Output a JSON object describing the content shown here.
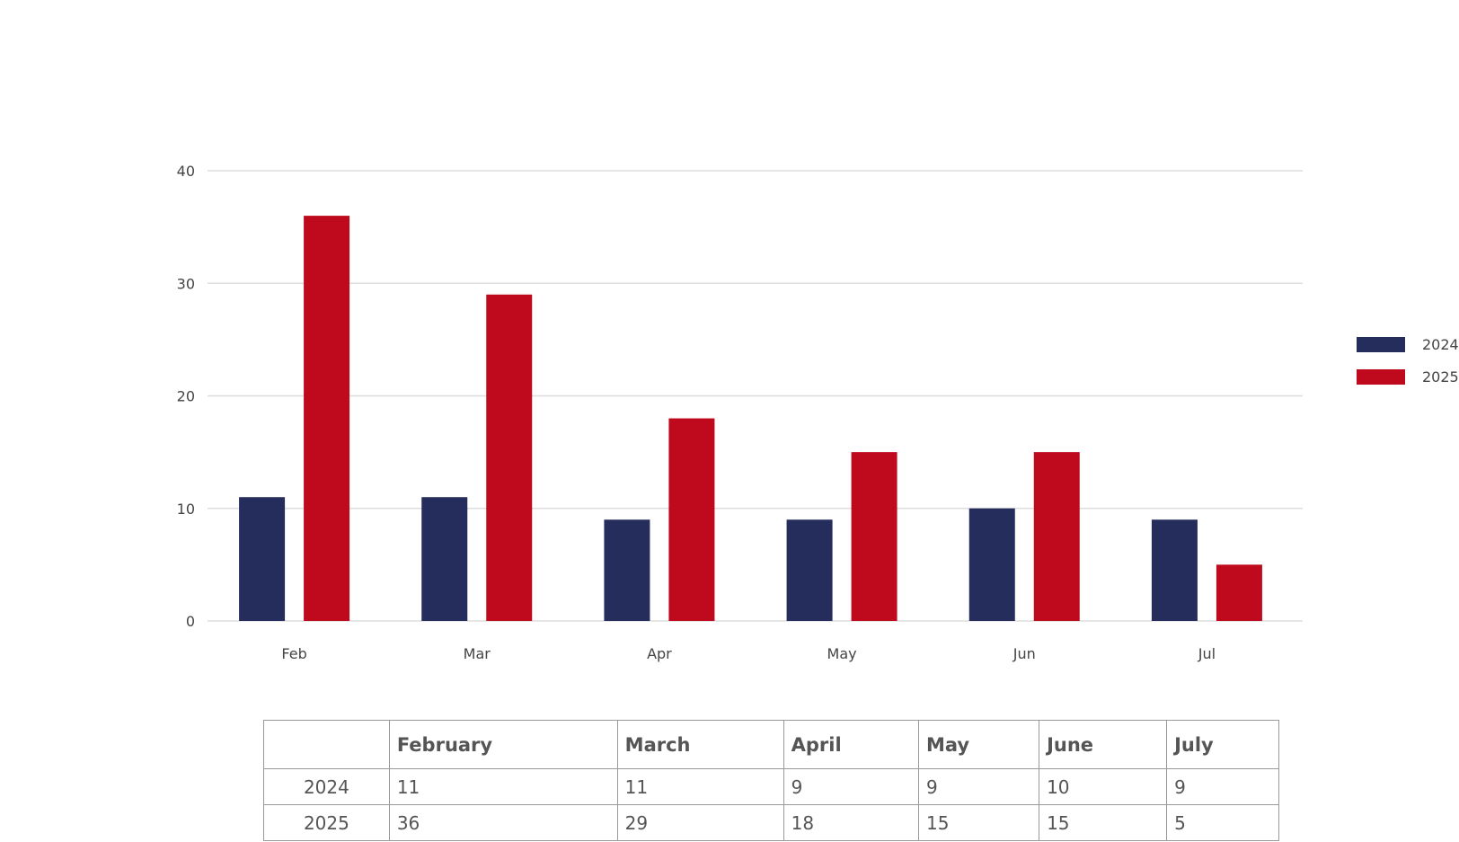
{
  "chart_data": {
    "type": "bar",
    "categories": [
      "Feb",
      "Mar",
      "Apr",
      "May",
      "Jun",
      "Jul"
    ],
    "series": [
      {
        "name": "2024",
        "values": [
          11,
          11,
          9,
          9,
          10,
          9
        ],
        "color": "#252d5c"
      },
      {
        "name": "2025",
        "values": [
          36,
          29,
          18,
          15,
          15,
          5
        ],
        "color": "#bf0a1e"
      }
    ],
    "ylim": [
      0,
      40
    ],
    "yticks": [
      0,
      10,
      20,
      30,
      40
    ],
    "grid": true,
    "legend": "right"
  },
  "table": {
    "headers": [
      "",
      "February",
      "March",
      "April",
      "May",
      "June",
      "July"
    ],
    "rows": [
      {
        "label": "2024",
        "values": [
          "11",
          "11",
          "9",
          "9",
          "10",
          "9"
        ]
      },
      {
        "label": "2025",
        "values": [
          "36",
          "29",
          "18",
          "15",
          "15",
          "5"
        ]
      }
    ]
  }
}
